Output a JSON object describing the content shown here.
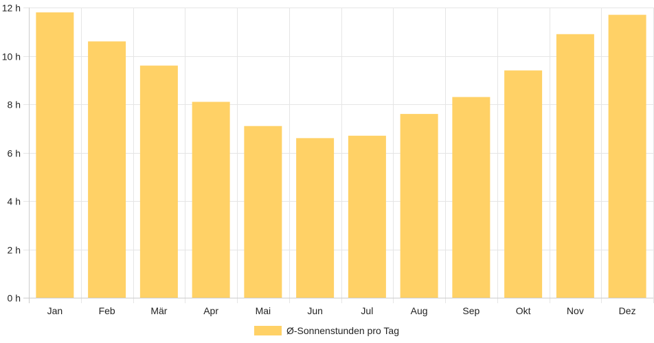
{
  "chart_data": {
    "type": "bar",
    "categories": [
      "Jan",
      "Feb",
      "Mär",
      "Apr",
      "Mai",
      "Jun",
      "Jul",
      "Aug",
      "Sep",
      "Okt",
      "Nov",
      "Dez"
    ],
    "series": [
      {
        "name": "Ø-Sonnenstunden pro Tag",
        "values": [
          11.8,
          10.6,
          9.6,
          8.1,
          7.1,
          6.6,
          6.7,
          7.6,
          8.3,
          9.4,
          10.9,
          11.7
        ],
        "color": "#ffd166"
      }
    ],
    "y_ticks": [
      "0 h",
      "2 h",
      "4 h",
      "6 h",
      "8 h",
      "10 h",
      "12 h"
    ],
    "y_tick_values": [
      0,
      2,
      4,
      6,
      8,
      10,
      12
    ],
    "ylim": [
      0,
      12
    ],
    "grid": true,
    "legend_position": "bottom",
    "colors": {
      "bar": "#ffd166",
      "grid": "#e5e5e5",
      "axis": "#cccccc",
      "text": "#222222"
    }
  }
}
